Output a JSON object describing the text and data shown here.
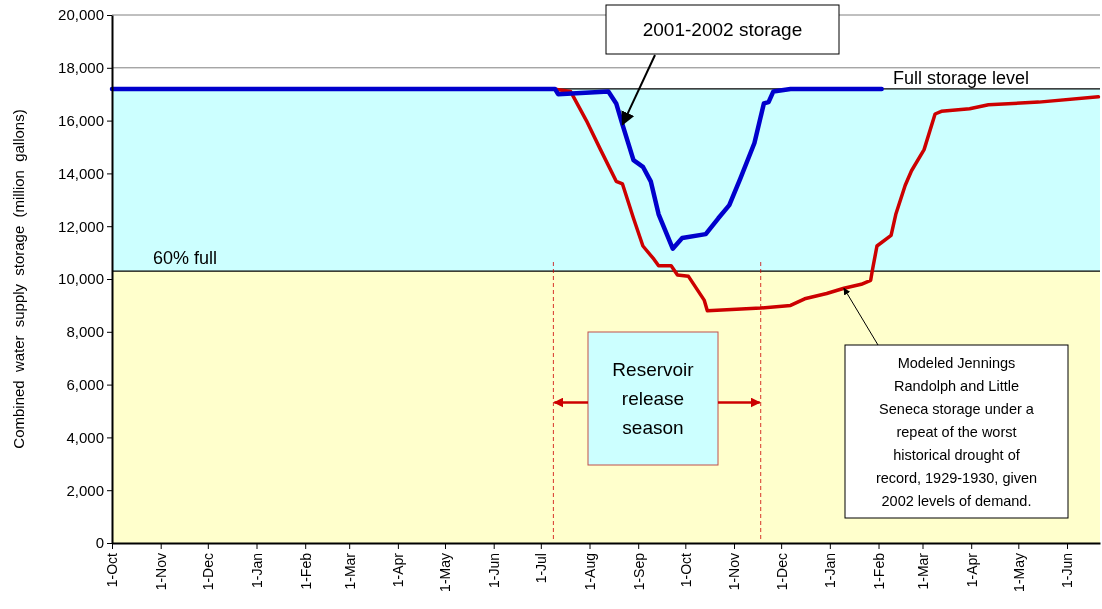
{
  "chart_data": {
    "type": "line",
    "ylabel": "Combined water supply storage (million gallons)",
    "xlim": [
      "2001-10-01",
      "2003-06-22"
    ],
    "xticks": [
      {
        "value": "2001-10-01",
        "label": "1-Oct"
      },
      {
        "value": "2001-11-01",
        "label": "1-Nov"
      },
      {
        "value": "2001-12-01",
        "label": "1-Dec"
      },
      {
        "value": "2002-01-01",
        "label": "1-Jan"
      },
      {
        "value": "2002-02-01",
        "label": "1-Feb"
      },
      {
        "value": "2002-03-01",
        "label": "1-Mar"
      },
      {
        "value": "2002-04-01",
        "label": "1-Apr"
      },
      {
        "value": "2002-05-01",
        "label": "1-May"
      },
      {
        "value": "2002-06-01",
        "label": "1-Jun"
      },
      {
        "value": "2002-07-01",
        "label": "1-Jul"
      },
      {
        "value": "2002-08-01",
        "label": "1-Aug"
      },
      {
        "value": "2002-09-01",
        "label": "1-Sep"
      },
      {
        "value": "2002-10-01",
        "label": "1-Oct"
      },
      {
        "value": "2002-11-01",
        "label": "1-Nov"
      },
      {
        "value": "2002-12-01",
        "label": "1-Dec"
      },
      {
        "value": "2003-01-01",
        "label": "1-Jan"
      },
      {
        "value": "2003-02-01",
        "label": "1-Feb"
      },
      {
        "value": "2003-03-01",
        "label": "1-Mar"
      },
      {
        "value": "2003-04-01",
        "label": "1-Apr"
      },
      {
        "value": "2003-05-01",
        "label": "1-May"
      },
      {
        "value": "2003-06-01",
        "label": "1-Jun"
      }
    ],
    "ylim": [
      0,
      20000
    ],
    "yticks": [
      0,
      {
        "value": 2000,
        "label": "2,000"
      },
      {
        "value": 4000,
        "label": "4,000"
      },
      {
        "value": 6000,
        "label": "6,000"
      },
      {
        "value": 8000,
        "label": "8,000"
      },
      {
        "value": 10000,
        "label": "10,000"
      },
      {
        "value": 12000,
        "label": "12,000"
      },
      {
        "value": 14000,
        "label": "14,000"
      },
      {
        "value": 16000,
        "label": "16,000"
      },
      {
        "value": 18000,
        "label": "18,000"
      },
      {
        "value": 20000,
        "label": "20,000"
      }
    ],
    "grid": "y",
    "marker": "none",
    "line_style": "solid",
    "bands": [
      {
        "axis": "y",
        "from": 10300,
        "to": 17200,
        "color": "#ccffff"
      },
      {
        "axis": "y",
        "from": 0,
        "to": 10300,
        "color": "#ffffcc"
      }
    ],
    "ref_lines": [
      {
        "axis": "y",
        "value": 17200,
        "label": "Full storage level",
        "color": "#000000"
      },
      {
        "axis": "y",
        "value": 10300,
        "label": "60% full",
        "color": "#000000"
      },
      {
        "axis": "x",
        "value": "2002-07-09",
        "color": "#cc0000",
        "line_style": "dashed"
      },
      {
        "axis": "x",
        "value": "2002-11-18",
        "color": "#cc0000",
        "line_style": "dashed"
      }
    ],
    "series": [
      {
        "color": "#0000cc",
        "x": [
          "2001-10-01",
          "2002-07-10",
          "2002-07-12",
          "2002-08-13",
          "2002-08-18",
          "2002-08-22",
          "2002-08-29",
          "2002-09-04",
          "2002-09-09",
          "2002-09-14",
          "2002-09-23",
          "2002-09-29",
          "2002-10-14",
          "2002-10-22",
          "2002-10-29",
          "2002-11-05",
          "2002-11-14",
          "2002-11-20",
          "2002-11-23",
          "2002-11-26",
          "2002-12-07",
          "2003-02-03"
        ],
        "values": [
          17200,
          17200,
          17000,
          17100,
          16650,
          15850,
          14500,
          14250,
          13700,
          12450,
          11150,
          11550,
          11700,
          12300,
          12800,
          13800,
          15150,
          16650,
          16700,
          17100,
          17200,
          17200
        ]
      },
      {
        "color": "#cc0000",
        "x": [
          "2002-07-09",
          "2002-07-20",
          "2002-07-30",
          "2002-08-08",
          "2002-08-18",
          "2002-08-22",
          "2002-08-29",
          "2002-09-04",
          "2002-09-11",
          "2002-09-14",
          "2002-09-22",
          "2002-09-26",
          "2002-10-03",
          "2002-10-13",
          "2002-10-15",
          "2002-11-18",
          "2002-12-07",
          "2002-12-16",
          "2002-12-30",
          "2003-01-10",
          "2003-01-21",
          "2003-01-27",
          "2003-01-28",
          "2003-01-31",
          "2003-02-09",
          "2003-02-12",
          "2003-02-18",
          "2003-02-22",
          "2003-03-02",
          "2003-03-09",
          "2003-03-13",
          "2003-03-31",
          "2003-04-12",
          "2003-05-14",
          "2003-06-21"
        ],
        "values": [
          17200,
          17100,
          16000,
          14900,
          13700,
          13600,
          12300,
          11250,
          10750,
          10500,
          10500,
          10150,
          10100,
          9200,
          8800,
          8900,
          9000,
          9250,
          9450,
          9650,
          9800,
          9950,
          10300,
          11250,
          11650,
          12450,
          13550,
          14100,
          14900,
          16250,
          16350,
          16450,
          16600,
          16700,
          16900
        ]
      }
    ],
    "annotations": [
      {
        "text": "2001-2002 storage",
        "x": "2002-08-22",
        "y": 15850
      },
      "Reservoir\nrelease\nseason",
      {
        "text": "Modeled Jennings\nRandolph and Little\nSeneca storage under a\nrepeat of the worst\nhistorical drought of\nrecord, 1929-1930, given\n2002 levels of demand.",
        "x": "2003-01-10",
        "y": 9650
      }
    ]
  }
}
